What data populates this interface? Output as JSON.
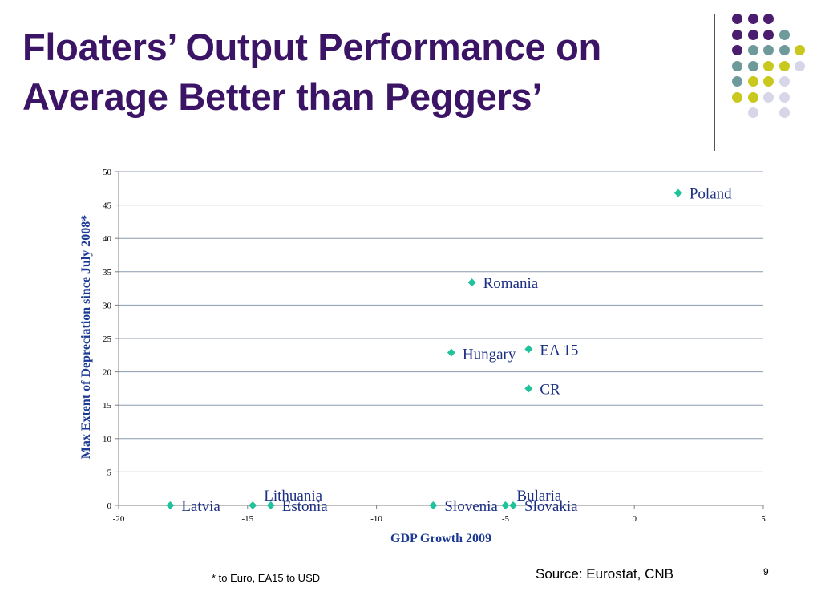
{
  "slide": {
    "title_line1": "Floaters’ Output Performance on",
    "title_line2": "Average Better than Peggers’",
    "footnote": "* to Euro,  EA15  to USD",
    "source": "Source: Eurostat, CNB",
    "page_number": "9"
  },
  "colors": {
    "title": "#3b1466",
    "marker": "#1fc29a",
    "point_label": "#1c2f83",
    "axis_title": "#1c3a94",
    "gridline": "#8a9bb0",
    "dot_purple": "#4b1d6e",
    "dot_teal": "#6f9a9b",
    "dot_lime": "#c9c81e",
    "dot_lavender": "#d6d6e8"
  },
  "decoration": {
    "dot_pattern_colors": [
      [
        "purple",
        "purple",
        "purple",
        "",
        ""
      ],
      [
        "purple",
        "purple",
        "purple",
        "teal",
        ""
      ],
      [
        "purple",
        "teal",
        "teal",
        "teal",
        "lime"
      ],
      [
        "teal",
        "teal",
        "lime",
        "lime",
        "lavender"
      ],
      [
        "teal",
        "lime",
        "lime",
        "lavender",
        ""
      ],
      [
        "lime",
        "lime",
        "lavender",
        "lavender",
        ""
      ],
      [
        "",
        "lavender",
        "",
        "lavender",
        ""
      ]
    ]
  },
  "chart_data": {
    "type": "scatter",
    "title": "",
    "xlabel": "GDP Growth 2009",
    "ylabel": "Max Extent of Depreciation since July 2008*",
    "xlim": [
      -20,
      5
    ],
    "ylim": [
      0,
      50
    ],
    "x_ticks": [
      -20,
      -15,
      -10,
      -5,
      0,
      5
    ],
    "y_ticks": [
      0,
      5,
      10,
      15,
      20,
      25,
      30,
      35,
      40,
      45,
      50
    ],
    "grid": "horizontal",
    "legend": "none",
    "points": [
      {
        "label": "Poland",
        "x": 1.7,
        "y": 46.8,
        "label_pos": "right",
        "label_dy": 0
      },
      {
        "label": "Romania",
        "x": -6.3,
        "y": 33.4,
        "label_pos": "right",
        "label_dy": 0
      },
      {
        "label": "Hungary",
        "x": -7.1,
        "y": 22.9,
        "label_pos": "right",
        "label_dy": 1
      },
      {
        "label": "EA 15",
        "x": -4.1,
        "y": 23.4,
        "label_pos": "right",
        "label_dy": 0
      },
      {
        "label": "CR",
        "x": -4.1,
        "y": 17.5,
        "label_pos": "right",
        "label_dy": 0
      },
      {
        "label": "Latvia",
        "x": -18.0,
        "y": 0,
        "label_pos": "right",
        "label_dy": 0
      },
      {
        "label": "Lithuania",
        "x": -14.8,
        "y": 0,
        "label_pos": "above-right",
        "label_dy": -13
      },
      {
        "label": "Estonia",
        "x": -14.1,
        "y": 0,
        "label_pos": "right",
        "label_dy": 0
      },
      {
        "label": "Slovenia",
        "x": -7.8,
        "y": 0,
        "label_pos": "right",
        "label_dy": 0
      },
      {
        "label": "Bularia",
        "x": -5.0,
        "y": 0,
        "label_pos": "above-right",
        "label_dy": -13
      },
      {
        "label": "Slovakia",
        "x": -4.7,
        "y": 0,
        "label_pos": "right",
        "label_dy": 0
      }
    ]
  }
}
